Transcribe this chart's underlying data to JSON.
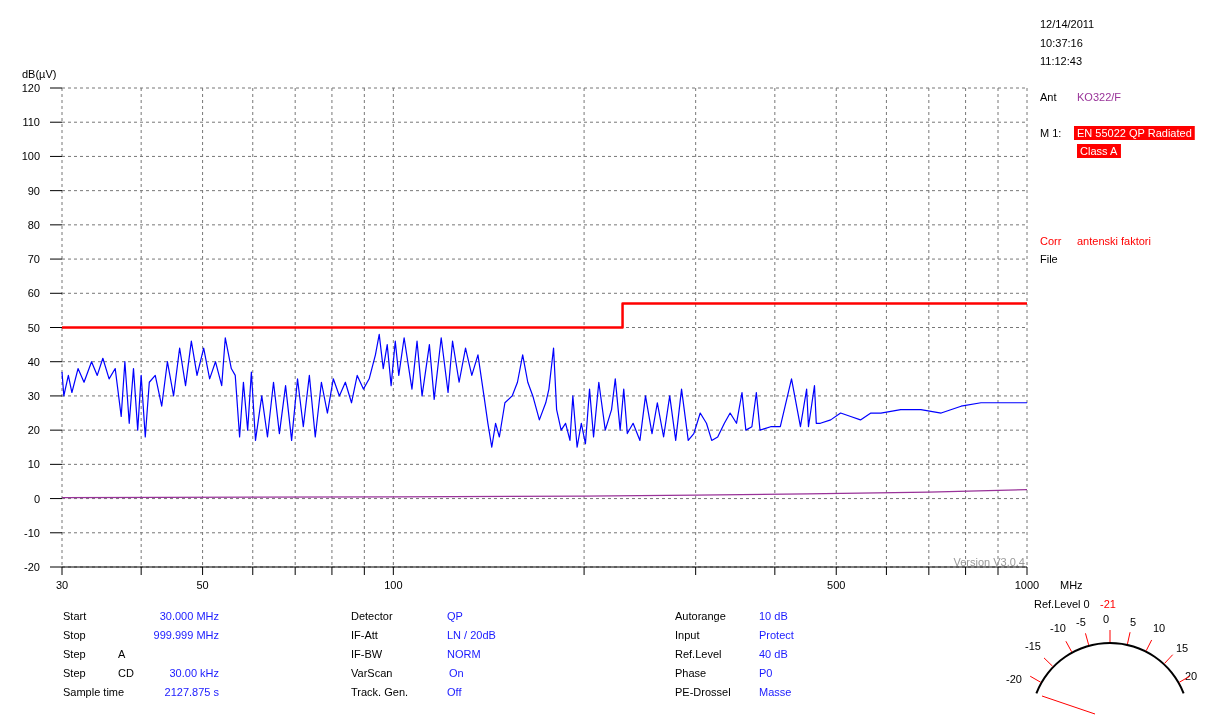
{
  "chart_data": {
    "type": "line",
    "xlabel": "MHz",
    "ylabel": "dB(µV)",
    "log": "x",
    "grid": true,
    "xlim": [
      30,
      1000
    ],
    "ylim": [
      -20,
      120
    ],
    "xticks": [
      30,
      {
        "value": 40,
        "label": null
      },
      50,
      {
        "value": 60,
        "label": null
      },
      {
        "value": 70,
        "label": null
      },
      {
        "value": 80,
        "label": null
      },
      {
        "value": 90,
        "label": null
      },
      100,
      {
        "value": 200,
        "label": null
      },
      {
        "value": 300,
        "label": null
      },
      {
        "value": 400,
        "label": null
      },
      500,
      {
        "value": 600,
        "label": null
      },
      {
        "value": 700,
        "label": null
      },
      {
        "value": 800,
        "label": null
      },
      {
        "value": 900,
        "label": null
      },
      1000
    ],
    "yticks": [
      -20,
      -10,
      0,
      10,
      20,
      30,
      40,
      50,
      60,
      70,
      80,
      90,
      100,
      110,
      120
    ],
    "series": [
      {
        "color": "#0000ff",
        "x": [
          30,
          30.2,
          30.7,
          31.1,
          31.8,
          32.5,
          33.4,
          34.1,
          34.8,
          35.6,
          36.4,
          37.2,
          37.7,
          38.3,
          38.9,
          39.5,
          40,
          40.6,
          41.2,
          42.1,
          43.1,
          44,
          45,
          46,
          47,
          48,
          49,
          50.2,
          51.3,
          52.4,
          53.6,
          54.3,
          55.5,
          56.3,
          57.2,
          58,
          58.9,
          59.7,
          60.6,
          62,
          63.3,
          64.7,
          66.1,
          67.6,
          69.1,
          70.6,
          72.1,
          73.7,
          75.3,
          77,
          78.7,
          80.4,
          82.2,
          84,
          85.9,
          87.7,
          89.7,
          91.6,
          93.7,
          95,
          96.4,
          97.8,
          99.2,
          100.7,
          102,
          104,
          107,
          109,
          111,
          114,
          116,
          119,
          122,
          124,
          127,
          130,
          133,
          136,
          139,
          141,
          143,
          145,
          147,
          150,
          154,
          157,
          160,
          163,
          166,
          170,
          174,
          176,
          179,
          181,
          184,
          187,
          190,
          192,
          195,
          198,
          201,
          204,
          207,
          211,
          216,
          221,
          224,
          228,
          231,
          234,
          239,
          245,
          250,
          256,
          261,
          267,
          273,
          279,
          285,
          292,
          298,
          305,
          312,
          318,
          325,
          333,
          340,
          348,
          355,
          360,
          368,
          374,
          379,
          394,
          408,
          425,
          439,
          449,
          452,
          462,
          465,
          472,
          490,
          508,
          527,
          546,
          567,
          588,
          632,
          680,
          732,
          787,
          846,
          910,
          1000
        ],
        "values": [
          37,
          30,
          36,
          31,
          38,
          34,
          40,
          36,
          41,
          35,
          38,
          24,
          40,
          22,
          38,
          20,
          36,
          18,
          34,
          36,
          27,
          40,
          30,
          44,
          33,
          46,
          36,
          44,
          35,
          40,
          33,
          47,
          38,
          36,
          18,
          34,
          20,
          37,
          17,
          30,
          18,
          34,
          19,
          33,
          17,
          35,
          21,
          36,
          18,
          34,
          25,
          35,
          30,
          34,
          28,
          36,
          32,
          35,
          42,
          48,
          38,
          45,
          33,
          46,
          36,
          47,
          32,
          46,
          30,
          45,
          29,
          47,
          31,
          46,
          34,
          44,
          36,
          42,
          30,
          22,
          15,
          22,
          18,
          28,
          30,
          34,
          42,
          34,
          30,
          23,
          28,
          32,
          44,
          26,
          20,
          22,
          17,
          30,
          15,
          22,
          16,
          32,
          18,
          34,
          20,
          26,
          35,
          20,
          32,
          19,
          22,
          17,
          30,
          19,
          28,
          18,
          30,
          17,
          32,
          17,
          19,
          25,
          22,
          17,
          18,
          22,
          25,
          22,
          31,
          20,
          21,
          31,
          20,
          21,
          21,
          35,
          21,
          32,
          21,
          33,
          22,
          22,
          23,
          25,
          24,
          23,
          25,
          25,
          26,
          26,
          25,
          27,
          28,
          28,
          28
        ]
      },
      {
        "color": "#ff0000",
        "x": [
          30,
          230,
          230,
          1000
        ],
        "values": [
          50,
          50,
          57,
          57
        ]
      },
      {
        "color": "#993399",
        "x": [
          30,
          100,
          200,
          300,
          450,
          700,
          1000
        ],
        "values": [
          0.3,
          0.5,
          0.7,
          1,
          1.4,
          1.9,
          2.6
        ]
      }
    ],
    "annotations": [
      "12/14/2011",
      "10:37:16",
      "11:12:43",
      "Ant",
      "KO322/F",
      "M 1:",
      "EN 55022 QP Radiated",
      "Class A",
      "Corr",
      "antenski faktori",
      "File",
      "Version V3.0.4",
      "Start",
      "30.000 MHz",
      "Stop",
      "999.999 MHz",
      "Step",
      "A",
      "Step",
      "CD",
      "30.00 kHz",
      "Sample time",
      "2127.875 s",
      "Detector",
      "QP",
      "IF-Att",
      "LN / 20dB",
      "IF-BW",
      "NORM",
      "VarScan",
      "On",
      "Track. Gen.",
      "Off",
      "Autorange",
      "10 dB",
      "Input",
      "Protect",
      "Ref.Level",
      "40 dB",
      "Phase",
      "P0",
      "PE-Drossel",
      "Masse",
      "Ref.Level 0",
      "-21",
      "-20",
      "-15",
      "-10",
      "-5",
      "0",
      "5",
      "10",
      "15",
      "20"
    ]
  }
}
